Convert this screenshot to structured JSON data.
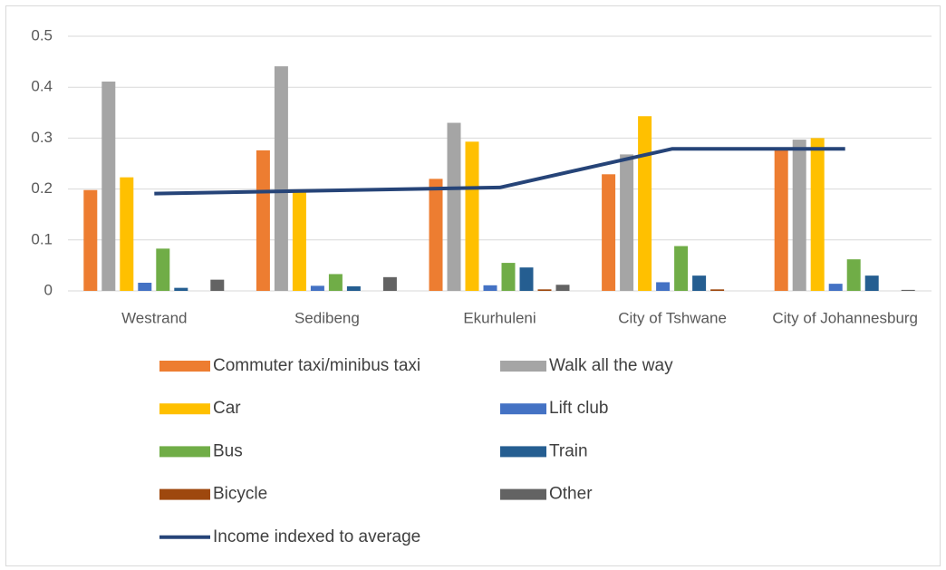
{
  "chart_data": {
    "type": "bar",
    "categories": [
      "Westrand",
      "Sedibeng",
      "Ekurhuleni",
      "City of Tshwane",
      "City of Johannesburg"
    ],
    "series": [
      {
        "name": "Commuter taxi/minibus taxi",
        "color": "#ed7d31",
        "values": [
          0.198,
          0.276,
          0.22,
          0.229,
          0.276
        ]
      },
      {
        "name": "Walk all the way",
        "color": "#a5a5a5",
        "values": [
          0.411,
          0.441,
          0.33,
          0.268,
          0.297
        ]
      },
      {
        "name": "Car",
        "color": "#ffc000",
        "values": [
          0.223,
          0.194,
          0.293,
          0.343,
          0.3
        ]
      },
      {
        "name": "Lift club",
        "color": "#4472c4",
        "values": [
          0.016,
          0.01,
          0.011,
          0.017,
          0.014
        ]
      },
      {
        "name": "Bus",
        "color": "#70ad47",
        "values": [
          0.083,
          0.033,
          0.055,
          0.088,
          0.062
        ]
      },
      {
        "name": "Train",
        "color": "#255e91",
        "values": [
          0.006,
          0.009,
          0.046,
          0.03,
          0.03
        ]
      },
      {
        "name": "Bicycle",
        "color": "#9e480e",
        "values": [
          0,
          0,
          0.003,
          0.003,
          0
        ]
      },
      {
        "name": "Other",
        "color": "#636363",
        "values": [
          0.022,
          0.027,
          0.012,
          0,
          0.002
        ]
      },
      {
        "name": "Income indexed to average",
        "color": "#264478",
        "type": "line",
        "values": [
          0.191,
          0.197,
          0.203,
          0.279,
          0.279
        ]
      }
    ],
    "ylim": [
      0,
      0.5
    ],
    "yticks": [
      0,
      0.1,
      0.2,
      0.3,
      0.4,
      0.5
    ],
    "grid": true,
    "legend": "bottom"
  }
}
